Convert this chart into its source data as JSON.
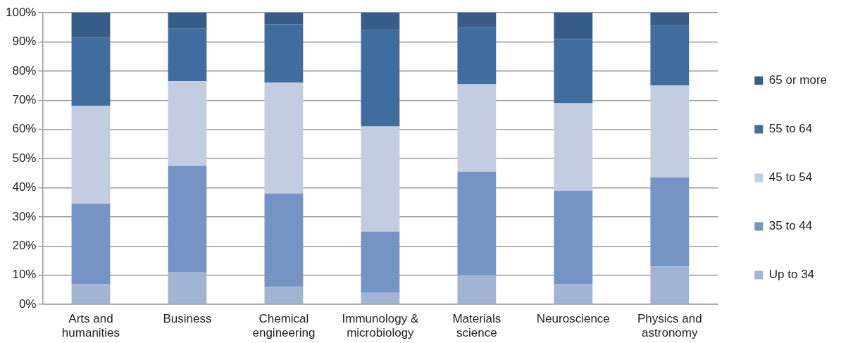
{
  "chart_data": {
    "type": "bar",
    "stacked": true,
    "categories": [
      "Arts and humanities",
      "Business",
      "Chemical engineering",
      "Immunology & microbiology",
      "Materials science",
      "Neuroscience",
      "Physics and astronomy"
    ],
    "series": [
      {
        "name": "Up to 34",
        "color": "#a2b4d4",
        "values": [
          7,
          11,
          6,
          4,
          10,
          7,
          13
        ]
      },
      {
        "name": "35 to 44",
        "color": "#7394c4",
        "values": [
          27.5,
          36.5,
          32,
          21,
          35.5,
          32,
          30.5
        ]
      },
      {
        "name": "45 to 54",
        "color": "#c2cde2",
        "values": [
          33.5,
          29,
          38,
          36,
          30,
          30,
          31.5
        ]
      },
      {
        "name": "55 to 64",
        "color": "#416c9e",
        "values": [
          23.5,
          18,
          20,
          33,
          19.5,
          22,
          20.5
        ]
      },
      {
        "name": "65 or more",
        "color": "#375c87",
        "values": [
          8.5,
          5.5,
          4,
          6,
          5,
          9,
          4.5
        ]
      }
    ],
    "ylim": [
      0,
      100
    ],
    "yticks": [
      {
        "value": 0,
        "label": "0%"
      },
      {
        "value": 10,
        "label": "10%"
      },
      {
        "value": 20,
        "label": "20%"
      },
      {
        "value": 30,
        "label": "30%"
      },
      {
        "value": 40,
        "label": "40%"
      },
      {
        "value": 50,
        "label": "50%"
      },
      {
        "value": 60,
        "label": "60%"
      },
      {
        "value": 70,
        "label": "70%"
      },
      {
        "value": 80,
        "label": "80%"
      },
      {
        "value": 90,
        "label": "90%"
      },
      {
        "value": 100,
        "label": "100%"
      }
    ],
    "grid": "y",
    "legend": "right"
  }
}
